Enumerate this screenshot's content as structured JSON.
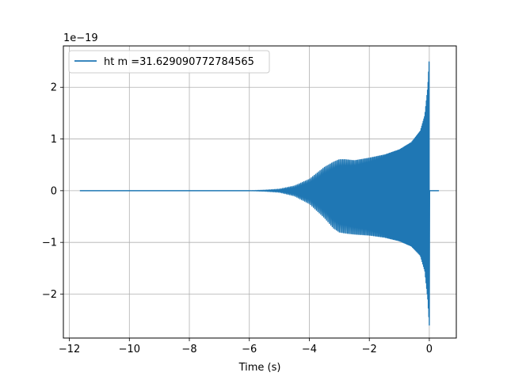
{
  "chart_data": {
    "type": "line",
    "title": "",
    "xlabel": "Time (s)",
    "ylabel": "",
    "y_multiplier_label": "1e−19",
    "xlim": [
      -12.2,
      0.9
    ],
    "ylim": [
      -2.85,
      2.8
    ],
    "x_ticks": [
      -12,
      -10,
      -8,
      -6,
      -4,
      -2,
      0
    ],
    "x_tick_labels": [
      "−12",
      "−10",
      "−8",
      "−6",
      "−4",
      "−2",
      "0"
    ],
    "y_ticks": [
      -2,
      -1,
      0,
      1,
      2
    ],
    "y_tick_labels": [
      "−2",
      "−1",
      "0",
      "1",
      "2"
    ],
    "grid": true,
    "legend_position": "upper left",
    "series": [
      {
        "name": "ht m =31.629090772784565",
        "color": "#1f77b4",
        "x_start": -11.65,
        "x_end": 0.32,
        "envelope": {
          "x": [
            -6.0,
            -5.5,
            -5.0,
            -4.5,
            -4.0,
            -3.5,
            -3.2,
            -3.0,
            -2.8,
            -2.5,
            -2.0,
            -1.5,
            -1.0,
            -0.6,
            -0.3,
            -0.15,
            -0.05,
            0.0
          ],
          "upper": [
            0.0,
            0.01,
            0.03,
            0.09,
            0.22,
            0.45,
            0.55,
            0.6,
            0.6,
            0.58,
            0.63,
            0.69,
            0.79,
            0.93,
            1.15,
            1.45,
            2.0,
            2.58
          ],
          "lower": [
            0.0,
            -0.01,
            -0.03,
            -0.1,
            -0.25,
            -0.52,
            -0.72,
            -0.8,
            -0.82,
            -0.84,
            -0.86,
            -0.9,
            -0.97,
            -1.07,
            -1.25,
            -1.55,
            -2.1,
            -2.6
          ]
        }
      }
    ]
  }
}
